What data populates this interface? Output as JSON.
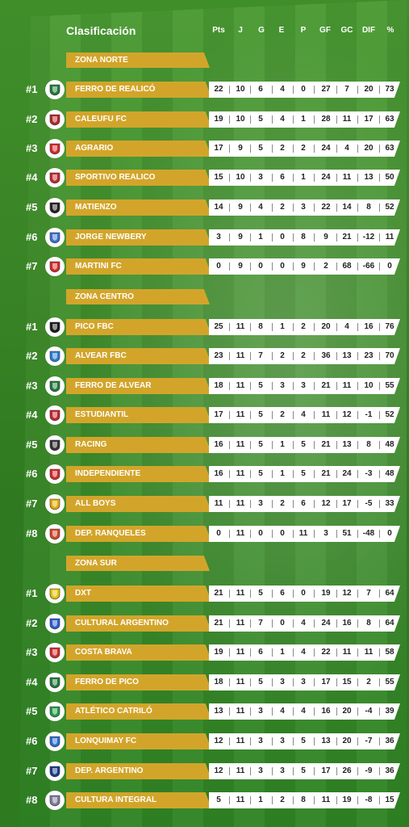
{
  "header": {
    "title": "Clasificación",
    "columns": [
      "Pts",
      "J",
      "G",
      "E",
      "P",
      "GF",
      "GC",
      "DIF",
      "%"
    ]
  },
  "zones": [
    {
      "name": "ZONA NORTE",
      "teams": [
        {
          "rank": "#1",
          "name": "FERRO DE REALICÓ",
          "crest": "ferro-realico-crest",
          "color": "#1f7a3a",
          "stats": [
            "22",
            "10",
            "6",
            "4",
            "0",
            "27",
            "7",
            "20",
            "73"
          ]
        },
        {
          "rank": "#2",
          "name": "CALEUFU FC",
          "crest": "caleufu-crest",
          "color": "#b3262a",
          "stats": [
            "19",
            "10",
            "5",
            "4",
            "1",
            "28",
            "11",
            "17",
            "63"
          ]
        },
        {
          "rank": "#3",
          "name": "AGRARIO",
          "crest": "agrario-crest",
          "color": "#d22a2a",
          "stats": [
            "17",
            "9",
            "5",
            "2",
            "2",
            "24",
            "4",
            "20",
            "63"
          ]
        },
        {
          "rank": "#4",
          "name": "SPORTIVO REALICO",
          "crest": "sportivo-realico-crest",
          "color": "#c0282d",
          "stats": [
            "15",
            "10",
            "3",
            "6",
            "1",
            "24",
            "11",
            "13",
            "50"
          ]
        },
        {
          "rank": "#5",
          "name": "MATIENZO",
          "crest": "matienzo-crest",
          "color": "#222222",
          "stats": [
            "14",
            "9",
            "4",
            "2",
            "3",
            "22",
            "14",
            "8",
            "52"
          ]
        },
        {
          "rank": "#6",
          "name": "JORGE NEWBERY",
          "crest": "jorge-newbery-crest",
          "color": "#3a6fd1",
          "stats": [
            "3",
            "9",
            "1",
            "0",
            "8",
            "9",
            "21",
            "-12",
            "11"
          ]
        },
        {
          "rank": "#7",
          "name": "MARTINI FC",
          "crest": "martini-crest",
          "color": "#d22a2a",
          "stats": [
            "0",
            "9",
            "0",
            "0",
            "9",
            "2",
            "68",
            "-66",
            "0"
          ]
        }
      ]
    },
    {
      "name": "ZONA CENTRO",
      "teams": [
        {
          "rank": "#1",
          "name": "PICO FBC",
          "crest": "pico-fbc-crest",
          "color": "#1a1a1a",
          "stats": [
            "25",
            "11",
            "8",
            "1",
            "2",
            "20",
            "4",
            "16",
            "76"
          ]
        },
        {
          "rank": "#2",
          "name": "ALVEAR FBC",
          "crest": "alvear-fbc-crest",
          "color": "#2a7bd1",
          "stats": [
            "23",
            "11",
            "7",
            "2",
            "2",
            "36",
            "13",
            "23",
            "70"
          ]
        },
        {
          "rank": "#3",
          "name": "FERRO DE ALVEAR",
          "crest": "ferro-alvear-crest",
          "color": "#1f7a3a",
          "stats": [
            "18",
            "11",
            "5",
            "3",
            "3",
            "21",
            "11",
            "10",
            "55"
          ]
        },
        {
          "rank": "#4",
          "name": "ESTUDIANTIL",
          "crest": "estudiantil-crest",
          "color": "#c0282d",
          "stats": [
            "17",
            "11",
            "5",
            "2",
            "4",
            "11",
            "12",
            "-1",
            "52"
          ]
        },
        {
          "rank": "#5",
          "name": "RACING",
          "crest": "racing-crest",
          "color": "#333333",
          "stats": [
            "16",
            "11",
            "5",
            "1",
            "5",
            "21",
            "13",
            "8",
            "48"
          ]
        },
        {
          "rank": "#6",
          "name": "INDEPENDIENTE",
          "crest": "independiente-crest",
          "color": "#d22a2a",
          "stats": [
            "16",
            "11",
            "5",
            "1",
            "5",
            "21",
            "24",
            "-3",
            "48"
          ]
        },
        {
          "rank": "#7",
          "name": "ALL BOYS",
          "crest": "all-boys-crest",
          "color": "#e0a800",
          "stats": [
            "11",
            "11",
            "3",
            "2",
            "6",
            "12",
            "17",
            "-5",
            "33"
          ]
        },
        {
          "rank": "#8",
          "name": "DEP. RANQUELES",
          "crest": "dep-ranqueles-crest",
          "color": "#d2452a",
          "stats": [
            "0",
            "11",
            "0",
            "0",
            "11",
            "3",
            "51",
            "-48",
            "0"
          ]
        }
      ]
    },
    {
      "name": "ZONA SUR",
      "teams": [
        {
          "rank": "#1",
          "name": "DXT",
          "crest": "dxt-crest",
          "color": "#e0c000",
          "stats": [
            "21",
            "11",
            "5",
            "6",
            "0",
            "19",
            "12",
            "7",
            "64"
          ]
        },
        {
          "rank": "#2",
          "name": "CULTURAL ARGENTINO",
          "crest": "cultural-argentino-crest",
          "color": "#2a5bd1",
          "stats": [
            "21",
            "11",
            "7",
            "0",
            "4",
            "24",
            "16",
            "8",
            "64"
          ]
        },
        {
          "rank": "#3",
          "name": "COSTA BRAVA",
          "crest": "costa-brava-crest",
          "color": "#d22a2a",
          "stats": [
            "19",
            "11",
            "6",
            "1",
            "4",
            "22",
            "11",
            "11",
            "58"
          ]
        },
        {
          "rank": "#4",
          "name": "FERRO DE PICO",
          "crest": "ferro-pico-crest",
          "color": "#1f7a3a",
          "stats": [
            "18",
            "11",
            "5",
            "3",
            "3",
            "17",
            "15",
            "2",
            "55"
          ]
        },
        {
          "rank": "#5",
          "name": "ATLÉTICO CATRILÓ",
          "crest": "atletico-catrilo-crest",
          "color": "#1f9a4a",
          "stats": [
            "13",
            "11",
            "3",
            "4",
            "4",
            "16",
            "20",
            "-4",
            "39"
          ]
        },
        {
          "rank": "#6",
          "name": "LONQUIMAY FC",
          "crest": "lonquimay-crest",
          "color": "#2a6bd1",
          "stats": [
            "12",
            "11",
            "3",
            "3",
            "5",
            "13",
            "20",
            "-7",
            "36"
          ]
        },
        {
          "rank": "#7",
          "name": "DEP. ARGENTINO",
          "crest": "dep-argentino-crest",
          "color": "#1a3a8a",
          "stats": [
            "12",
            "11",
            "3",
            "3",
            "5",
            "17",
            "26",
            "-9",
            "36"
          ]
        },
        {
          "rank": "#8",
          "name": "CULTURA INTEGRAL",
          "crest": "cultura-integral-crest",
          "color": "#7a7a9a",
          "stats": [
            "5",
            "11",
            "1",
            "2",
            "8",
            "11",
            "19",
            "-8",
            "15"
          ]
        }
      ]
    }
  ]
}
